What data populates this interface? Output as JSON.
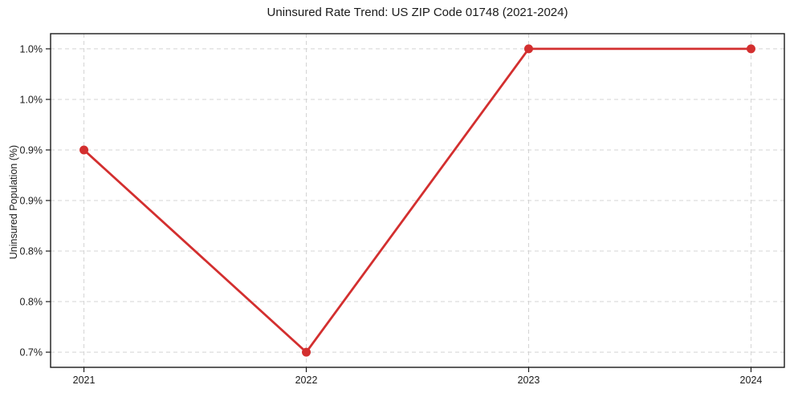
{
  "chart_data": {
    "type": "line",
    "title": "Uninsured Rate Trend: US ZIP Code 01748 (2021-2024)",
    "xlabel": "",
    "ylabel": "Uninsured Population (%)",
    "x": [
      2021,
      2022,
      2023,
      2024
    ],
    "values": [
      0.9,
      0.7,
      1.0,
      1.0
    ],
    "x_ticks": [
      {
        "value": 2021,
        "label": "2021"
      },
      {
        "value": 2022,
        "label": "2022"
      },
      {
        "value": 2023,
        "label": "2023"
      },
      {
        "value": 2024,
        "label": "2024"
      }
    ],
    "y_ticks": [
      {
        "value": 0.7,
        "label": "0.7%"
      },
      {
        "value": 0.75,
        "label": "0.8%"
      },
      {
        "value": 0.8,
        "label": "0.8%"
      },
      {
        "value": 0.85,
        "label": "0.9%"
      },
      {
        "value": 0.9,
        "label": "0.9%"
      },
      {
        "value": 0.95,
        "label": "1.0%"
      },
      {
        "value": 1.0,
        "label": "1.0%"
      }
    ],
    "xlim": [
      2020.85,
      2024.15
    ],
    "ylim": [
      0.685,
      1.015
    ],
    "grid": true,
    "legend": "none",
    "line_color": "#d32f2f",
    "marker_color": "#d32f2f",
    "grid_color": "#d4d4d4",
    "spine_color": "#1a1a1a",
    "background_color": "#ffffff"
  }
}
